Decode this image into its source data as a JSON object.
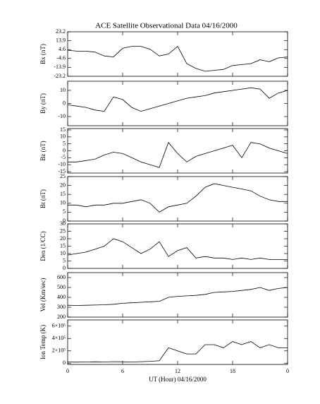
{
  "chart_data": [
    {
      "type": "line",
      "title": "ACE Satellite Observational Data   04/16/2000",
      "ylabel": "Bx (nT)",
      "x": [
        0,
        1,
        2,
        3,
        4,
        5,
        6,
        7,
        8,
        9,
        10,
        11,
        12,
        13,
        14,
        15,
        16,
        17,
        18,
        19,
        20,
        21,
        22,
        23,
        24
      ],
      "values": [
        4,
        3,
        3,
        2,
        -2,
        -3,
        6,
        8,
        8,
        5,
        -2,
        0,
        8,
        -10,
        -15,
        -18,
        -17,
        -16,
        -12,
        -11,
        -10,
        -6,
        -8,
        -4,
        -3
      ],
      "xlim": [
        0,
        24
      ],
      "xticks": [
        0,
        6,
        12,
        18,
        {
          "value": 24,
          "label": "0"
        }
      ],
      "ylim": [
        -23.2,
        23.2
      ],
      "yticks": [
        23.2,
        13.9,
        4.6,
        -4.6,
        -13.9,
        -23.2
      ]
    },
    {
      "type": "line",
      "ylabel": "By (nT)",
      "x": [
        0,
        1,
        2,
        3,
        4,
        5,
        6,
        7,
        8,
        9,
        10,
        11,
        12,
        13,
        14,
        15,
        16,
        17,
        18,
        19,
        20,
        21,
        22,
        23,
        24
      ],
      "values": [
        -1,
        -2,
        -3,
        -5,
        -6,
        5,
        3,
        -3,
        -6,
        -4,
        -2,
        0,
        2,
        4,
        5,
        6,
        8,
        9,
        10,
        11,
        12,
        11,
        4,
        8,
        10
      ],
      "xlim": [
        0,
        24
      ],
      "xticks": [
        0,
        6,
        12,
        18,
        {
          "value": 24,
          "label": "0"
        }
      ],
      "ylim": [
        -17,
        17
      ],
      "yticks": [
        10,
        0,
        -10
      ]
    },
    {
      "type": "line",
      "ylabel": "Bz (nT)",
      "x": [
        0,
        1,
        2,
        3,
        4,
        5,
        6,
        7,
        8,
        9,
        10,
        11,
        12,
        13,
        14,
        15,
        16,
        17,
        18,
        19,
        20,
        21,
        22,
        23,
        24
      ],
      "values": [
        -8,
        -8,
        -7,
        -6,
        -3,
        -1,
        -2,
        -5,
        -8,
        -10,
        -12,
        6,
        -2,
        -8,
        -4,
        -2,
        0,
        2,
        4,
        -5,
        6,
        5,
        2,
        0,
        -2
      ],
      "xlim": [
        0,
        24
      ],
      "xticks": [
        0,
        6,
        12,
        18,
        {
          "value": 24,
          "label": "0"
        }
      ],
      "ylim": [
        -16,
        16
      ],
      "yticks": [
        15,
        10,
        5,
        0,
        -5,
        -10,
        -15
      ]
    },
    {
      "type": "line",
      "ylabel": "Bt (nT)",
      "x": [
        0,
        1,
        2,
        3,
        4,
        5,
        6,
        7,
        8,
        9,
        10,
        11,
        12,
        13,
        14,
        15,
        16,
        17,
        18,
        19,
        20,
        21,
        22,
        23,
        24
      ],
      "values": [
        9,
        9,
        8,
        9,
        9,
        10,
        10,
        11,
        12,
        10,
        5,
        8,
        9,
        10,
        14,
        19,
        21,
        20,
        19,
        18,
        17,
        14,
        12,
        11,
        11
      ],
      "xlim": [
        0,
        24
      ],
      "xticks": [
        0,
        6,
        12,
        18,
        {
          "value": 24,
          "label": "0"
        }
      ],
      "ylim": [
        0,
        25
      ],
      "yticks": [
        0,
        5,
        10,
        15,
        20,
        25
      ]
    },
    {
      "type": "line",
      "ylabel": "Den (1/CC)",
      "x": [
        0,
        1,
        2,
        3,
        4,
        5,
        6,
        7,
        8,
        9,
        10,
        11,
        12,
        13,
        14,
        15,
        16,
        17,
        18,
        19,
        20,
        21,
        22,
        23,
        24
      ],
      "values": [
        9,
        10,
        11,
        13,
        15,
        20,
        18,
        14,
        10,
        13,
        18,
        8,
        12,
        14,
        7,
        8,
        7,
        7,
        6,
        7,
        6,
        7,
        6,
        6,
        6
      ],
      "xlim": [
        0,
        24
      ],
      "xticks": [
        0,
        6,
        12,
        18,
        {
          "value": 24,
          "label": "0"
        }
      ],
      "ylim": [
        0,
        30
      ],
      "yticks": [
        0,
        5,
        10,
        15,
        20,
        25,
        30
      ]
    },
    {
      "type": "line",
      "ylabel": "Vel (Km/sec)",
      "x": [
        0,
        1,
        2,
        3,
        4,
        5,
        6,
        7,
        8,
        9,
        10,
        11,
        12,
        13,
        14,
        15,
        16,
        17,
        18,
        19,
        20,
        21,
        22,
        23,
        24
      ],
      "values": [
        320,
        318,
        320,
        322,
        325,
        330,
        340,
        345,
        350,
        355,
        360,
        400,
        410,
        415,
        420,
        430,
        450,
        455,
        460,
        470,
        480,
        500,
        470,
        490,
        500
      ],
      "xlim": [
        0,
        24
      ],
      "xticks": [
        0,
        6,
        12,
        18,
        {
          "value": 24,
          "label": "0"
        }
      ],
      "ylim": [
        200,
        650
      ],
      "yticks": [
        200,
        300,
        400,
        500,
        600
      ]
    },
    {
      "type": "line",
      "ylabel": "Ion Temp (K)",
      "xlabel": "UT (Hour)  04/16/2000",
      "x": [
        0,
        1,
        2,
        3,
        4,
        5,
        6,
        7,
        8,
        9,
        10,
        11,
        12,
        13,
        14,
        15,
        16,
        17,
        18,
        19,
        20,
        21,
        22,
        23,
        24
      ],
      "values": [
        20000,
        18000,
        20000,
        22000,
        20000,
        25000,
        22000,
        20000,
        25000,
        30000,
        40000,
        250000,
        200000,
        150000,
        150000,
        300000,
        300000,
        250000,
        350000,
        300000,
        350000,
        250000,
        300000,
        250000,
        250000
      ],
      "xlim": [
        0,
        24
      ],
      "xticks": [
        0,
        6,
        12,
        18,
        {
          "value": 24,
          "label": "0"
        }
      ],
      "ylim": [
        -20000,
        700000
      ],
      "yticks": [
        0,
        {
          "value": 200000,
          "label": "2×10⁵"
        },
        {
          "value": 400000,
          "label": "4×10⁵"
        },
        {
          "value": 600000,
          "label": "6×10⁵"
        }
      ]
    }
  ]
}
